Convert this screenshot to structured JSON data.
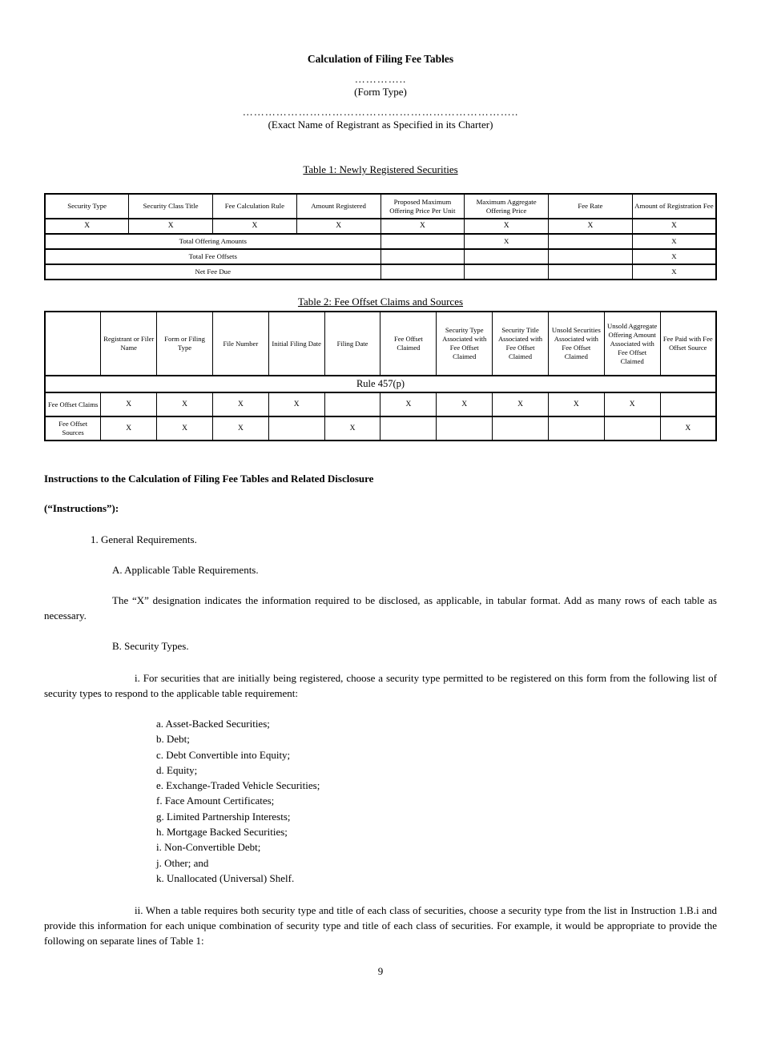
{
  "page": {
    "title": "Calculation of Filing Fee Tables",
    "form_type_dots": "…………..",
    "form_type_label": "(Form Type)",
    "registrant_dots": "………………………………………………………………..",
    "registrant_label": "(Exact Name of Registrant as Specified in its Charter)",
    "page_number": "9"
  },
  "table1": {
    "caption": "Table 1: Newly Registered Securities",
    "headers": [
      "Security Type",
      "Security Class Title",
      "Fee Calculation Rule",
      "Amount Registered",
      "Proposed Maximum Offering Price Per Unit",
      "Maximum Aggregate Offering Price",
      "Fee Rate",
      "Amount of Registration Fee"
    ],
    "x_row": [
      "X",
      "X",
      "X",
      "X",
      "X",
      "X",
      "X",
      "X"
    ],
    "summary_rows": [
      {
        "label": "Total Offering Amounts",
        "cells": [
          "",
          "X",
          "",
          "X"
        ]
      },
      {
        "label": "Total Fee Offsets",
        "cells": [
          "",
          "",
          "",
          "X"
        ]
      },
      {
        "label": "Net Fee Due",
        "cells": [
          "",
          "",
          "",
          "X"
        ]
      }
    ]
  },
  "table2": {
    "caption": "Table 2: Fee Offset Claims and Sources",
    "headers": [
      "",
      "Registrant or Filer Name",
      "Form or Filing Type",
      "File Number",
      "Initial Filing Date",
      "Filing Date",
      "Fee Offset Claimed",
      "Security Type Associated with Fee Offset Claimed",
      "Security Title Associated with Fee Offset Claimed",
      "Unsold Securities Associated with Fee Offset Claimed",
      "Unsold Aggregate Offering Amount Associated with Fee Offset Claimed",
      "Fee Paid with Fee Offset Source"
    ],
    "rule_label": "Rule 457(p)",
    "rows": [
      {
        "label": "Fee Offset Claims",
        "cells": [
          "X",
          "X",
          "X",
          "X",
          "",
          "X",
          "X",
          "X",
          "X",
          "X",
          ""
        ]
      },
      {
        "label": "Fee Offset Sources",
        "cells": [
          "X",
          "X",
          "X",
          "",
          "X",
          "",
          "",
          "",
          "",
          "",
          "X"
        ]
      }
    ]
  },
  "instructions": {
    "heading_line1": "Instructions to the Calculation of Filing Fee Tables and Related Disclosure",
    "heading_line2": "(“Instructions”):",
    "item_1": "1. General Requirements.",
    "item_A": "A. Applicable Table Requirements.",
    "para_A": "The “X” designation indicates the information required to be disclosed, as applicable, in tabular format. Add as many rows of each table as necessary.",
    "item_B": "B. Security Types.",
    "para_B_i": "i. For securities that are initially being registered, choose a security type permitted to be registered on this form from the following list of security types to respond to the applicable table requirement:",
    "security_types": [
      "a. Asset-Backed Securities;",
      "b. Debt;",
      "c. Debt Convertible into Equity;",
      "d. Equity;",
      "e. Exchange-Traded Vehicle Securities;",
      "f. Face Amount Certificates;",
      "g. Limited Partnership Interests;",
      "h. Mortgage Backed Securities;",
      "i. Non-Convertible Debt;",
      "j. Other; and",
      "k. Unallocated (Universal) Shelf."
    ],
    "para_B_ii": "ii. When a table requires both security type and title of each class of securities, choose a security type from the list in Instruction 1.B.i and provide this information for each unique combination of security type and title of each class of securities. For example, it would be appropriate to provide the following on separate lines of Table 1:"
  }
}
